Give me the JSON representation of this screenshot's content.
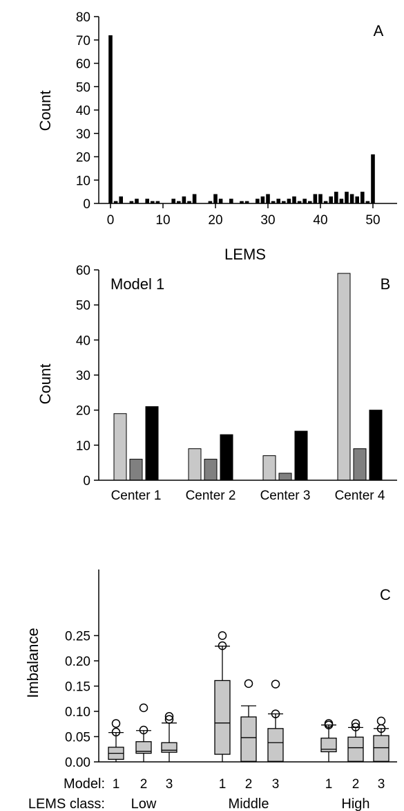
{
  "chart_data": [
    {
      "panel_label": "A",
      "type": "bar",
      "xlabel": "LEMS",
      "ylabel": "Count",
      "xlim": [
        0,
        50
      ],
      "ylim": [
        0,
        80
      ],
      "xticks": [
        "0",
        "10",
        "20",
        "30",
        "40",
        "50"
      ],
      "yticks": [
        "0",
        "10",
        "20",
        "30",
        "40",
        "50",
        "60",
        "70",
        "80"
      ],
      "x": [
        0,
        1,
        2,
        3,
        4,
        5,
        6,
        7,
        8,
        9,
        10,
        11,
        12,
        13,
        14,
        15,
        16,
        17,
        18,
        19,
        20,
        21,
        22,
        23,
        24,
        25,
        26,
        27,
        28,
        29,
        30,
        31,
        32,
        33,
        34,
        35,
        36,
        37,
        38,
        39,
        40,
        41,
        42,
        43,
        44,
        45,
        46,
        47,
        48,
        49,
        50
      ],
      "values": [
        72,
        1,
        3,
        0,
        1,
        2,
        0,
        2,
        1,
        1,
        0,
        0,
        2,
        1,
        3,
        1,
        4,
        0,
        0,
        1,
        4,
        2,
        0,
        2,
        0,
        1,
        1,
        0,
        2,
        3,
        4,
        1,
        2,
        1,
        2,
        3,
        1,
        2,
        1,
        4,
        4,
        1,
        3,
        5,
        2,
        5,
        4,
        3,
        5,
        1,
        21
      ],
      "color": "#000000"
    },
    {
      "panel_label": "B",
      "type": "bar",
      "annotation": "Model 1",
      "ylabel": "Count",
      "ylim": [
        0,
        60
      ],
      "yticks": [
        "0",
        "10",
        "20",
        "30",
        "40",
        "50",
        "60"
      ],
      "categories": [
        "Center 1",
        "Center 2",
        "Center 3",
        "Center 4"
      ],
      "series": [
        {
          "values": [
            19,
            9,
            7,
            59
          ],
          "color": "#c8c8c8"
        },
        {
          "values": [
            6,
            6,
            2,
            9
          ],
          "color": "#808080"
        },
        {
          "values": [
            21,
            13,
            14,
            20
          ],
          "color": "#000000"
        }
      ]
    },
    {
      "panel_label": "C",
      "type": "box",
      "ylabel": "Imbalance",
      "ylim": [
        0,
        0.27
      ],
      "yticks": [
        "0.00",
        "0.05",
        "0.10",
        "0.15",
        "0.20",
        "0.25"
      ],
      "row_labels": {
        "model": "Model:",
        "lems_class": "LEMS class:"
      },
      "groups": [
        {
          "name": "Low",
          "boxes": [
            {
              "model": "1",
              "q1": 0.005,
              "median": 0.017,
              "q3": 0.029,
              "whisker_low": 0.0,
              "whisker_high": 0.058,
              "outliers": [
                0.076,
                0.059
              ]
            },
            {
              "model": "2",
              "q1": 0.017,
              "median": 0.021,
              "q3": 0.04,
              "whisker_low": 0.0,
              "whisker_high": 0.062,
              "outliers": [
                0.107,
                0.063
              ]
            },
            {
              "model": "3",
              "q1": 0.019,
              "median": 0.023,
              "q3": 0.038,
              "whisker_low": 0.0,
              "whisker_high": 0.077,
              "outliers": [
                0.09,
                0.084
              ]
            }
          ]
        },
        {
          "name": "Middle",
          "boxes": [
            {
              "model": "1",
              "q1": 0.015,
              "median": 0.077,
              "q3": 0.161,
              "whisker_low": 0.0,
              "whisker_high": 0.229,
              "outliers": [
                0.25,
                0.23
              ]
            },
            {
              "model": "2",
              "q1": 0.001,
              "median": 0.048,
              "q3": 0.089,
              "whisker_low": 0.0,
              "whisker_high": 0.111,
              "outliers": [
                0.155
              ]
            },
            {
              "model": "3",
              "q1": 0.001,
              "median": 0.038,
              "q3": 0.066,
              "whisker_low": 0.0,
              "whisker_high": 0.095,
              "outliers": [
                0.154,
                0.095
              ]
            }
          ]
        },
        {
          "name": "High",
          "boxes": [
            {
              "model": "1",
              "q1": 0.02,
              "median": 0.025,
              "q3": 0.047,
              "whisker_low": 0.0,
              "whisker_high": 0.073,
              "outliers": [
                0.076,
                0.073
              ]
            },
            {
              "model": "2",
              "q1": 0.001,
              "median": 0.028,
              "q3": 0.049,
              "whisker_low": 0.0,
              "whisker_high": 0.068,
              "outliers": [
                0.076,
                0.069
              ]
            },
            {
              "model": "3",
              "q1": 0.001,
              "median": 0.028,
              "q3": 0.052,
              "whisker_low": 0.0,
              "whisker_high": 0.066,
              "outliers": [
                0.081,
                0.066
              ]
            }
          ]
        }
      ]
    }
  ]
}
